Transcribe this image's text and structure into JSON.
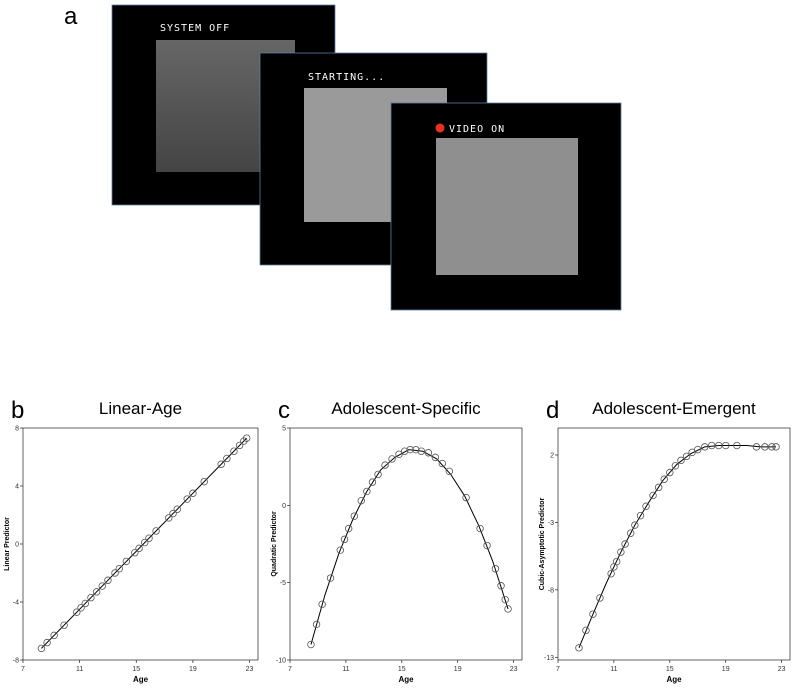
{
  "panel_a": {
    "panel_label": "a",
    "screens": [
      {
        "label": "SYSTEM OFF"
      },
      {
        "label": "STARTING..."
      },
      {
        "label": "VIDEO ON"
      }
    ]
  },
  "chart_data": [
    {
      "type": "scatter",
      "panel_label": "b",
      "title": "Linear-Age",
      "x_label": "Age",
      "y_label": "Linear Predictor",
      "xlim": [
        7,
        23.6
      ],
      "xticks": [
        7,
        11,
        15,
        19,
        23
      ],
      "ylim": [
        -8,
        8
      ],
      "yticks": [
        -8,
        -4,
        0,
        4,
        8
      ],
      "marker_color": "#555555",
      "line_color": "#000000",
      "points": {
        "x": [
          8.3,
          8.7,
          9.2,
          9.9,
          10.8,
          11.1,
          11.4,
          11.8,
          12.2,
          12.6,
          13.0,
          13.5,
          13.8,
          14.3,
          14.9,
          15.2,
          15.6,
          15.9,
          16.4,
          17.3,
          17.6,
          17.9,
          18.6,
          19.0,
          19.8,
          21.0,
          21.4,
          21.9,
          22.3,
          22.6,
          22.8
        ],
        "y": [
          -7.2,
          -6.8,
          -6.3,
          -5.6,
          -4.7,
          -4.4,
          -4.1,
          -3.7,
          -3.3,
          -2.9,
          -2.5,
          -2.0,
          -1.7,
          -1.2,
          -0.6,
          -0.3,
          0.1,
          0.4,
          0.9,
          1.8,
          2.1,
          2.4,
          3.1,
          3.5,
          4.3,
          5.5,
          5.9,
          6.4,
          6.8,
          7.1,
          7.3
        ]
      },
      "fit": {
        "x": [
          8.3,
          22.8
        ],
        "y": [
          -7.2,
          7.3
        ]
      }
    },
    {
      "type": "scatter",
      "panel_label": "c",
      "title": "Adolescent-Specific",
      "x_label": "Age",
      "y_label": "Quadratic Predictor",
      "xlim": [
        7,
        23.6
      ],
      "xticks": [
        7,
        11,
        15,
        19,
        23
      ],
      "ylim": [
        -10,
        5
      ],
      "yticks": [
        -10,
        -5,
        0,
        5
      ],
      "marker_color": "#555555",
      "line_color": "#000000",
      "points": {
        "x": [
          8.5,
          8.9,
          9.3,
          9.9,
          10.6,
          10.9,
          11.2,
          11.6,
          12.1,
          12.5,
          12.9,
          13.3,
          13.8,
          14.3,
          14.8,
          15.2,
          15.6,
          16.0,
          16.4,
          16.9,
          17.4,
          17.9,
          18.4,
          19.6,
          20.6,
          21.1,
          21.7,
          22.1,
          22.4,
          22.6
        ],
        "y": [
          -9.0,
          -7.7,
          -6.4,
          -4.7,
          -2.9,
          -2.2,
          -1.5,
          -0.7,
          0.3,
          0.9,
          1.5,
          2.0,
          2.6,
          3.0,
          3.3,
          3.5,
          3.6,
          3.6,
          3.5,
          3.4,
          3.1,
          2.7,
          2.2,
          0.5,
          -1.5,
          -2.6,
          -4.1,
          -5.2,
          -6.1,
          -6.7
        ]
      },
      "fit": {
        "x": [
          8.5,
          9.5,
          10.5,
          11.5,
          12.5,
          13.5,
          14.5,
          15.5,
          16.5,
          17.5,
          18.5,
          19.5,
          20.5,
          21.5,
          22.6
        ],
        "y": [
          -9.0,
          -5.8,
          -3.1,
          -0.9,
          0.9,
          2.3,
          3.1,
          3.6,
          3.5,
          3.0,
          2.0,
          0.6,
          -1.3,
          -3.6,
          -6.7
        ]
      }
    },
    {
      "type": "scatter",
      "panel_label": "d",
      "title": "Adolescent-Emergent",
      "x_label": "Age",
      "y_label": "Cubic-Asymptotic Predictor",
      "xlim": [
        7,
        23.6
      ],
      "xticks": [
        7,
        11,
        15,
        19,
        23
      ],
      "ylim": [
        -13.2,
        4
      ],
      "yticks": [
        -13,
        -8,
        -3,
        2
      ],
      "marker_color": "#555555",
      "line_color": "#000000",
      "points": {
        "x": [
          8.5,
          9.0,
          9.5,
          10.0,
          10.8,
          11.0,
          11.2,
          11.5,
          11.8,
          12.2,
          12.5,
          12.9,
          13.3,
          13.8,
          14.2,
          14.6,
          15.0,
          15.4,
          15.8,
          16.2,
          16.6,
          17.0,
          17.5,
          18.0,
          18.5,
          19.0,
          19.8,
          21.2,
          21.8,
          22.3,
          22.6
        ],
        "y": [
          -12.3,
          -11.0,
          -9.8,
          -8.6,
          -6.8,
          -6.3,
          -5.9,
          -5.2,
          -4.6,
          -3.8,
          -3.2,
          -2.5,
          -1.8,
          -1.0,
          -0.4,
          0.2,
          0.7,
          1.2,
          1.6,
          1.9,
          2.2,
          2.4,
          2.6,
          2.7,
          2.7,
          2.7,
          2.7,
          2.6,
          2.6,
          2.6,
          2.6
        ]
      },
      "fit": {
        "x": [
          8.5,
          9.5,
          10.5,
          11.5,
          12.5,
          13.5,
          14.5,
          15.5,
          16.5,
          17.5,
          18.5,
          19.5,
          20.5,
          21.5,
          22.6
        ],
        "y": [
          -12.3,
          -9.8,
          -7.4,
          -5.2,
          -3.2,
          -1.5,
          0.1,
          1.3,
          2.1,
          2.6,
          2.7,
          2.7,
          2.7,
          2.6,
          2.6
        ]
      }
    }
  ]
}
